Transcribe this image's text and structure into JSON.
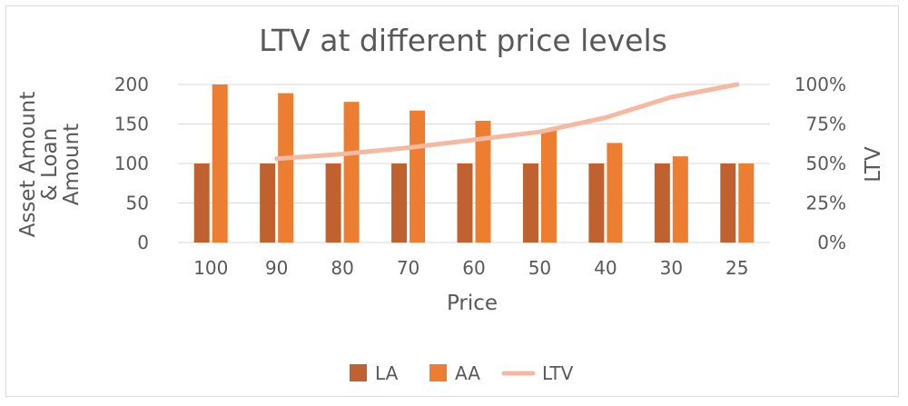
{
  "chart_data": {
    "type": "bar",
    "title": "LTV at different price levels",
    "xlabel": "Price",
    "ylabel_lines": [
      "Asset Amount",
      "& Loan",
      "Amount"
    ],
    "y2label": "LTV",
    "categories": [
      "100",
      "90",
      "80",
      "70",
      "60",
      "50",
      "40",
      "30",
      "25"
    ],
    "ylim": [
      0,
      200
    ],
    "yticks": [
      "0",
      "50",
      "100",
      "150",
      "200"
    ],
    "y2lim": [
      0,
      1
    ],
    "y2ticks": [
      "0%",
      "25%",
      "50%",
      "75%",
      "100%"
    ],
    "grid": true,
    "legend_position": "bottom",
    "series": [
      {
        "name": "LA",
        "kind": "bar",
        "axis": "left",
        "color": "#c0622f",
        "values": [
          100,
          100,
          100,
          100,
          100,
          100,
          100,
          100,
          100
        ]
      },
      {
        "name": "AA",
        "kind": "bar",
        "axis": "left",
        "color": "#ed7d31",
        "values": [
          200,
          189,
          178,
          167,
          154,
          143,
          126,
          109,
          100
        ]
      },
      {
        "name": "LTV",
        "kind": "line",
        "axis": "right",
        "color": "#f4b9a0",
        "values": [
          null,
          0.53,
          0.56,
          0.6,
          0.65,
          0.7,
          0.79,
          0.92,
          1.0
        ]
      }
    ]
  }
}
